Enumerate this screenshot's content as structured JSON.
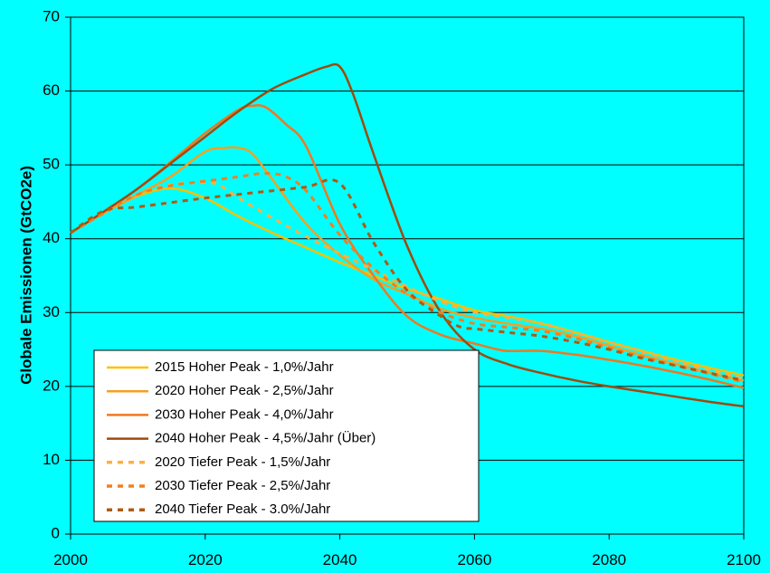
{
  "chart_data": {
    "type": "line",
    "title": "",
    "xlabel": "",
    "ylabel": "Globale Emissionen (GtCO2e)",
    "xlim": [
      2000,
      2100
    ],
    "ylim": [
      0,
      70
    ],
    "x_ticks": [
      "2000",
      "2020",
      "2040",
      "2060",
      "2080",
      "2100"
    ],
    "y_ticks": [
      "0",
      "10",
      "20",
      "30",
      "40",
      "50",
      "60",
      "70"
    ],
    "grid": "horizontal",
    "legend_position": "bottom-left",
    "background": "#00FFFF",
    "series": [
      {
        "name": "2015 Hoher Peak - 1,0%/Jahr",
        "color": "#FFC000",
        "dash": "solid",
        "x": [
          2000,
          2005,
          2010,
          2015,
          2020,
          2025,
          2030,
          2035,
          2040,
          2045,
          2050,
          2055,
          2060,
          2065,
          2070,
          2075,
          2080,
          2085,
          2090,
          2095,
          2100
        ],
        "y": [
          40.8,
          43.5,
          45.8,
          46.8,
          45.5,
          43,
          40.8,
          38.8,
          36.8,
          35,
          33.2,
          31.8,
          30.3,
          29.5,
          28.5,
          27.3,
          26,
          24.8,
          23.6,
          22.5,
          21.5
        ]
      },
      {
        "name": "2020 Hoher Peak - 2,5%/Jahr",
        "color": "#F7A020",
        "dash": "solid",
        "x": [
          2000,
          2005,
          2010,
          2015,
          2020,
          2023,
          2025,
          2027,
          2030,
          2035,
          2040,
          2045,
          2050,
          2055,
          2060,
          2065,
          2070,
          2075,
          2080,
          2085,
          2090,
          2095,
          2100
        ],
        "y": [
          40.8,
          43.5,
          46,
          48.5,
          51.8,
          52.3,
          52.3,
          51.5,
          48,
          42,
          37.8,
          34.5,
          32.5,
          30.5,
          29.3,
          28.5,
          27.8,
          26.8,
          25.5,
          24.2,
          23,
          21.8,
          20.8
        ]
      },
      {
        "name": "2030 Hoher Peak - 4,0%/Jahr",
        "color": "#F07820",
        "dash": "solid",
        "x": [
          2000,
          2005,
          2010,
          2015,
          2020,
          2025,
          2027,
          2029,
          2032,
          2035,
          2040,
          2045,
          2050,
          2055,
          2060,
          2063,
          2065,
          2070,
          2075,
          2080,
          2085,
          2090,
          2095,
          2100
        ],
        "y": [
          40.8,
          43.7,
          46.8,
          50.5,
          54.3,
          57.5,
          58,
          57.8,
          55.5,
          52.5,
          42,
          35,
          29.5,
          27,
          25.8,
          25.1,
          24.8,
          24.8,
          24.3,
          23.6,
          22.8,
          21.9,
          20.9,
          19.8
        ]
      },
      {
        "name": "2040 Hoher Peak - 4,5%/Jahr (Über)",
        "color": "#A04A0C",
        "dash": "solid",
        "x": [
          2000,
          2005,
          2010,
          2015,
          2020,
          2025,
          2030,
          2035,
          2038,
          2040,
          2042,
          2045,
          2050,
          2055,
          2060,
          2065,
          2070,
          2075,
          2080,
          2085,
          2090,
          2095,
          2100
        ],
        "y": [
          40.8,
          43.7,
          46.8,
          50.3,
          53.8,
          57.3,
          60.3,
          62.3,
          63.3,
          63.3,
          59.5,
          51.5,
          39,
          30,
          25,
          23,
          21.8,
          20.8,
          20,
          19.3,
          18.6,
          17.9,
          17.3
        ]
      },
      {
        "name": "2020 Tiefer Peak  - 1,5%/Jahr",
        "color": "#FFB040",
        "dash": "dashed",
        "x": [
          2000,
          2005,
          2010,
          2015,
          2020,
          2022,
          2025,
          2030,
          2035,
          2040,
          2045,
          2050,
          2055,
          2060,
          2065,
          2070,
          2075,
          2080,
          2085,
          2090,
          2095,
          2100
        ],
        "y": [
          40.8,
          43.5,
          46,
          47.3,
          47.6,
          47.3,
          45.5,
          42.8,
          40.3,
          38,
          35.8,
          33.5,
          31.5,
          30,
          29.3,
          28.5,
          27.3,
          26,
          24.7,
          23.4,
          22.2,
          21
        ]
      },
      {
        "name": "2030 Tiefer Peak  - 2,5%/Jahr",
        "color": "#F08020",
        "dash": "dashed",
        "x": [
          2000,
          2005,
          2010,
          2015,
          2020,
          2025,
          2028,
          2030,
          2032,
          2035,
          2040,
          2045,
          2050,
          2055,
          2060,
          2065,
          2070,
          2075,
          2080,
          2085,
          2090,
          2095,
          2100
        ],
        "y": [
          40.8,
          43.5,
          46,
          47.2,
          47.8,
          48.4,
          48.8,
          48.8,
          48.4,
          46.5,
          40.5,
          36,
          32.5,
          30,
          28.5,
          28,
          27.5,
          26.5,
          25.2,
          24,
          22.8,
          21.7,
          20.6
        ]
      },
      {
        "name": "2040 Tiefer Peak  - 3.0%/Jahr",
        "color": "#B05A10",
        "dash": "dashed",
        "x": [
          2000,
          2005,
          2010,
          2020,
          2030,
          2035,
          2040,
          2045,
          2050,
          2055,
          2058,
          2060,
          2065,
          2070,
          2075,
          2080,
          2085,
          2090,
          2095,
          2100
        ],
        "y": [
          40.8,
          43.8,
          44.3,
          45.5,
          46.5,
          47,
          47.5,
          39.5,
          33,
          29.5,
          28,
          27.8,
          27.3,
          26.8,
          26,
          25,
          23.8,
          22.8,
          21.8,
          20.8
        ]
      }
    ]
  }
}
